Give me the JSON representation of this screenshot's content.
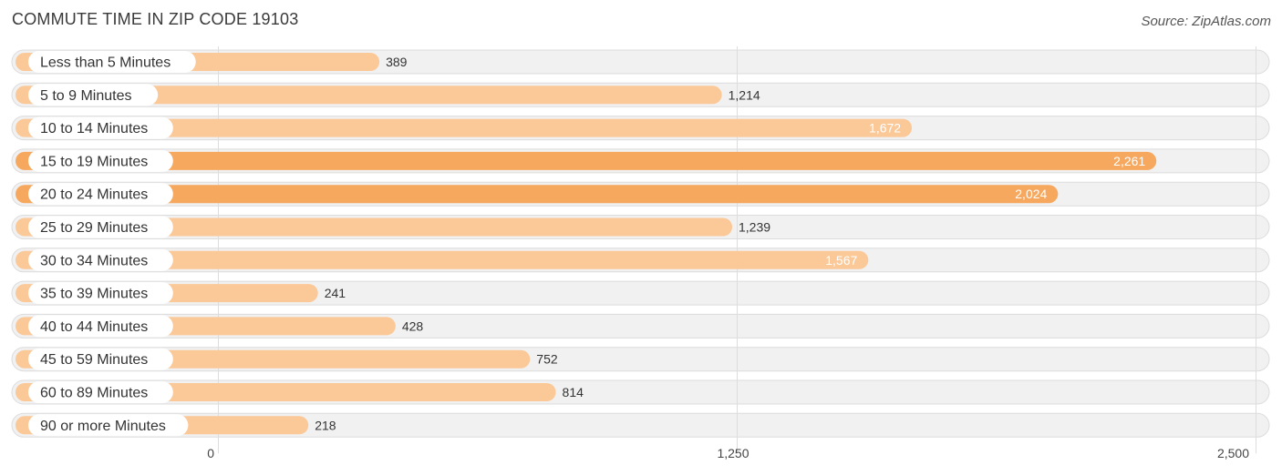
{
  "title": "COMMUTE TIME IN ZIP CODE 19103",
  "source": "Source: ZipAtlas.com",
  "colors": {
    "bar_light": "#fbc898",
    "bar_strong": "#f6a85f",
    "value_dark": "#333333",
    "value_light": "#ffffff"
  },
  "chart_data": {
    "type": "bar",
    "orientation": "horizontal",
    "title": "COMMUTE TIME IN ZIP CODE 19103",
    "categories": [
      "Less than 5 Minutes",
      "5 to 9 Minutes",
      "10 to 14 Minutes",
      "15 to 19 Minutes",
      "20 to 24 Minutes",
      "25 to 29 Minutes",
      "30 to 34 Minutes",
      "35 to 39 Minutes",
      "40 to 44 Minutes",
      "45 to 59 Minutes",
      "60 to 89 Minutes",
      "90 or more Minutes"
    ],
    "values": [
      389,
      1214,
      1672,
      2261,
      2024,
      1239,
      1567,
      241,
      428,
      752,
      814,
      218
    ],
    "value_labels": [
      "389",
      "1,214",
      "1,672",
      "2,261",
      "2,024",
      "1,239",
      "1,567",
      "241",
      "428",
      "752",
      "814",
      "218"
    ],
    "xlim": [
      0,
      2500
    ],
    "ticks": [
      0,
      1250,
      2500
    ],
    "tick_labels": [
      "0",
      "1,250",
      "2,500"
    ],
    "xlabel": "",
    "ylabel": "",
    "grid": true
  }
}
